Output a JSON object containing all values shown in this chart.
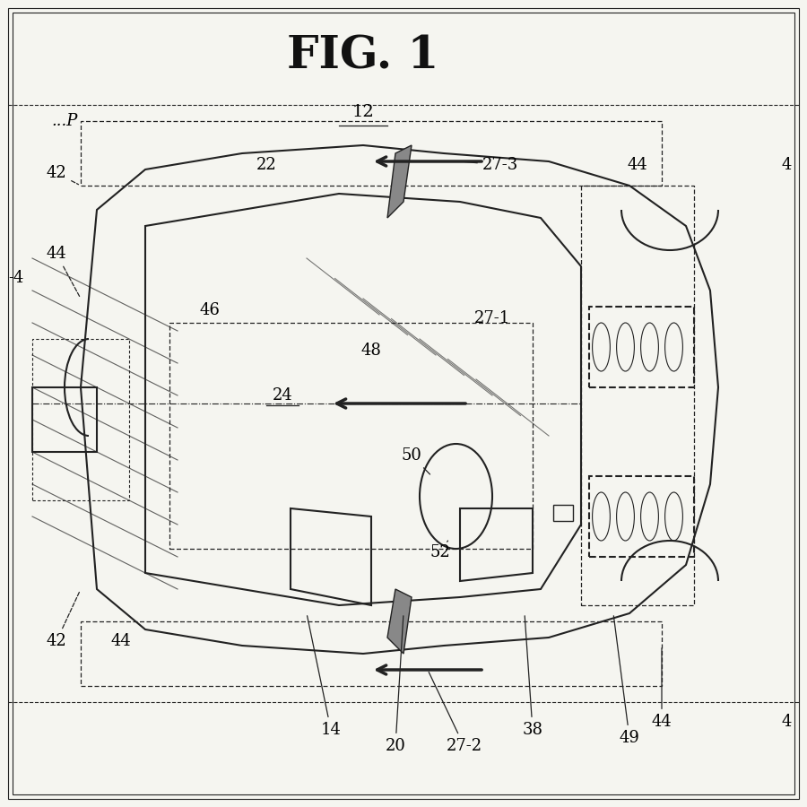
{
  "title": "FIG. 1",
  "bg_color": "#f5f5f0",
  "border_color": "#333333",
  "line_color": "#222222",
  "fig_label_size": 36,
  "annotation_size": 13
}
